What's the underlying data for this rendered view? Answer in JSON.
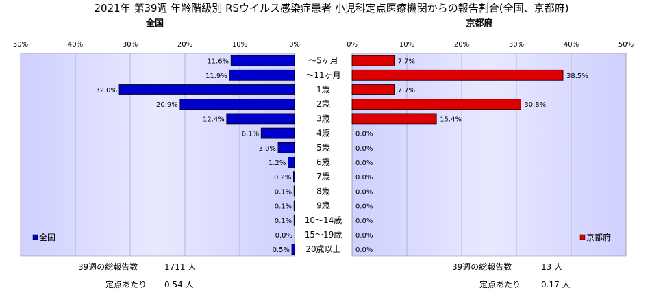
{
  "chart_data": {
    "type": "bar",
    "title": "2021年 第39週 年齢階級別 RSウイルス感染症患者 小児科定点医療機関からの報告割合(全国、京都府)",
    "categories": [
      "～5ヶ月",
      "～11ヶ月",
      "1歳",
      "2歳",
      "3歳",
      "4歳",
      "5歳",
      "6歳",
      "7歳",
      "8歳",
      "9歳",
      "10～14歳",
      "15～19歳",
      "20歳以上"
    ],
    "x_ticks": [
      "50%",
      "40%",
      "30%",
      "20%",
      "10%",
      "0%"
    ],
    "x_ticks_right": [
      "0%",
      "10%",
      "20%",
      "30%",
      "40%",
      "50%"
    ],
    "xlim": [
      0,
      50
    ],
    "series": [
      {
        "name": "全国",
        "subtitle": "全国",
        "color": "#0000cc",
        "values": [
          11.6,
          11.9,
          32.0,
          20.9,
          12.4,
          6.1,
          3.0,
          1.2,
          0.2,
          0.1,
          0.1,
          0.1,
          0.0,
          0.5
        ],
        "labels": [
          "11.6%",
          "11.9%",
          "32.0%",
          "20.9%",
          "12.4%",
          "6.1%",
          "3.0%",
          "1.2%",
          "0.2%",
          "0.1%",
          "0.1%",
          "0.1%",
          "0.0%",
          "0.5%"
        ]
      },
      {
        "name": "京都府",
        "subtitle": "京都府",
        "color": "#dd0000",
        "values": [
          7.7,
          38.5,
          7.7,
          30.8,
          15.4,
          0.0,
          0.0,
          0.0,
          0.0,
          0.0,
          0.0,
          0.0,
          0.0,
          0.0
        ],
        "labels": [
          "7.7%",
          "38.5%",
          "7.7%",
          "30.8%",
          "15.4%",
          "0.0%",
          "0.0%",
          "0.0%",
          "0.0%",
          "0.0%",
          "0.0%",
          "0.0%",
          "0.0%",
          "0.0%"
        ]
      }
    ],
    "grid": true,
    "legend_left": "bottom-left",
    "legend_right": "bottom-right",
    "plot_background": "#ccccff"
  },
  "footer": {
    "left": {
      "total_label": "39週の総報告数",
      "total_value": "1711 人",
      "per_label": "定点あたり",
      "per_value": "0.54 人"
    },
    "right": {
      "total_label": "39週の総報告数",
      "total_value": "13 人",
      "per_label": "定点あたり",
      "per_value": "0.17 人"
    }
  }
}
